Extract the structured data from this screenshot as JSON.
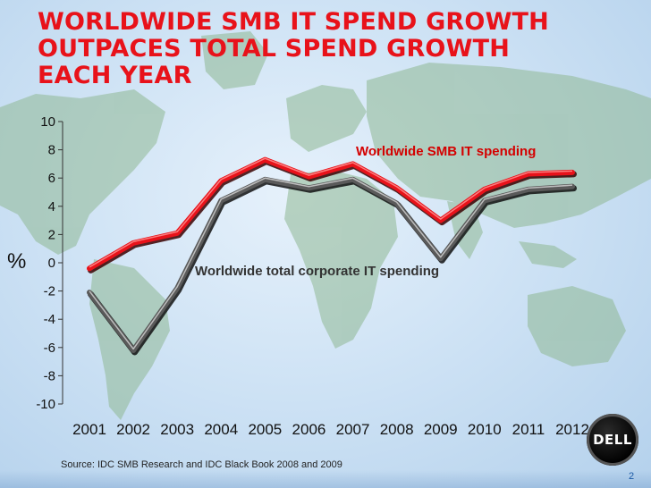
{
  "slide": {
    "title_lines": [
      "WORLDWIDE SMB IT SPEND GROWTH",
      "OUTPACES TOTAL SPEND GROWTH",
      "EACH YEAR"
    ],
    "source": "Source: IDC SMB Research and IDC Black Book 2008 and 2009",
    "page_number": "2",
    "logo_text": "DELL"
  },
  "colors": {
    "title": "#e8121a",
    "smb_series": "#e8121a",
    "total_series": "#555555",
    "annotation": "#d40000",
    "page_number": "#1b5aa6"
  },
  "chart_data": {
    "type": "line",
    "ylabel": "%",
    "ylim": [
      -10,
      10
    ],
    "yticks": [
      10,
      8,
      6,
      4,
      2,
      0,
      -2,
      -4,
      -6,
      -8,
      -10
    ],
    "categories": [
      "2001",
      "2002",
      "2003",
      "2004",
      "2005",
      "2006",
      "2007",
      "2008",
      "2009",
      "2010",
      "2011",
      "2012"
    ],
    "series": [
      {
        "name": "Worldwide SMB IT spending",
        "values": [
          -0.4,
          1.4,
          2.1,
          5.8,
          7.3,
          6.1,
          7.0,
          5.3,
          3.0,
          5.2,
          6.3,
          6.4
        ]
      },
      {
        "name": "Worldwide total corporate IT spending",
        "values": [
          -2.1,
          -6.2,
          -1.8,
          4.4,
          5.9,
          5.3,
          5.9,
          4.2,
          0.3,
          4.4,
          5.2,
          5.4
        ]
      }
    ],
    "grid": false,
    "legend": "inline labels"
  }
}
